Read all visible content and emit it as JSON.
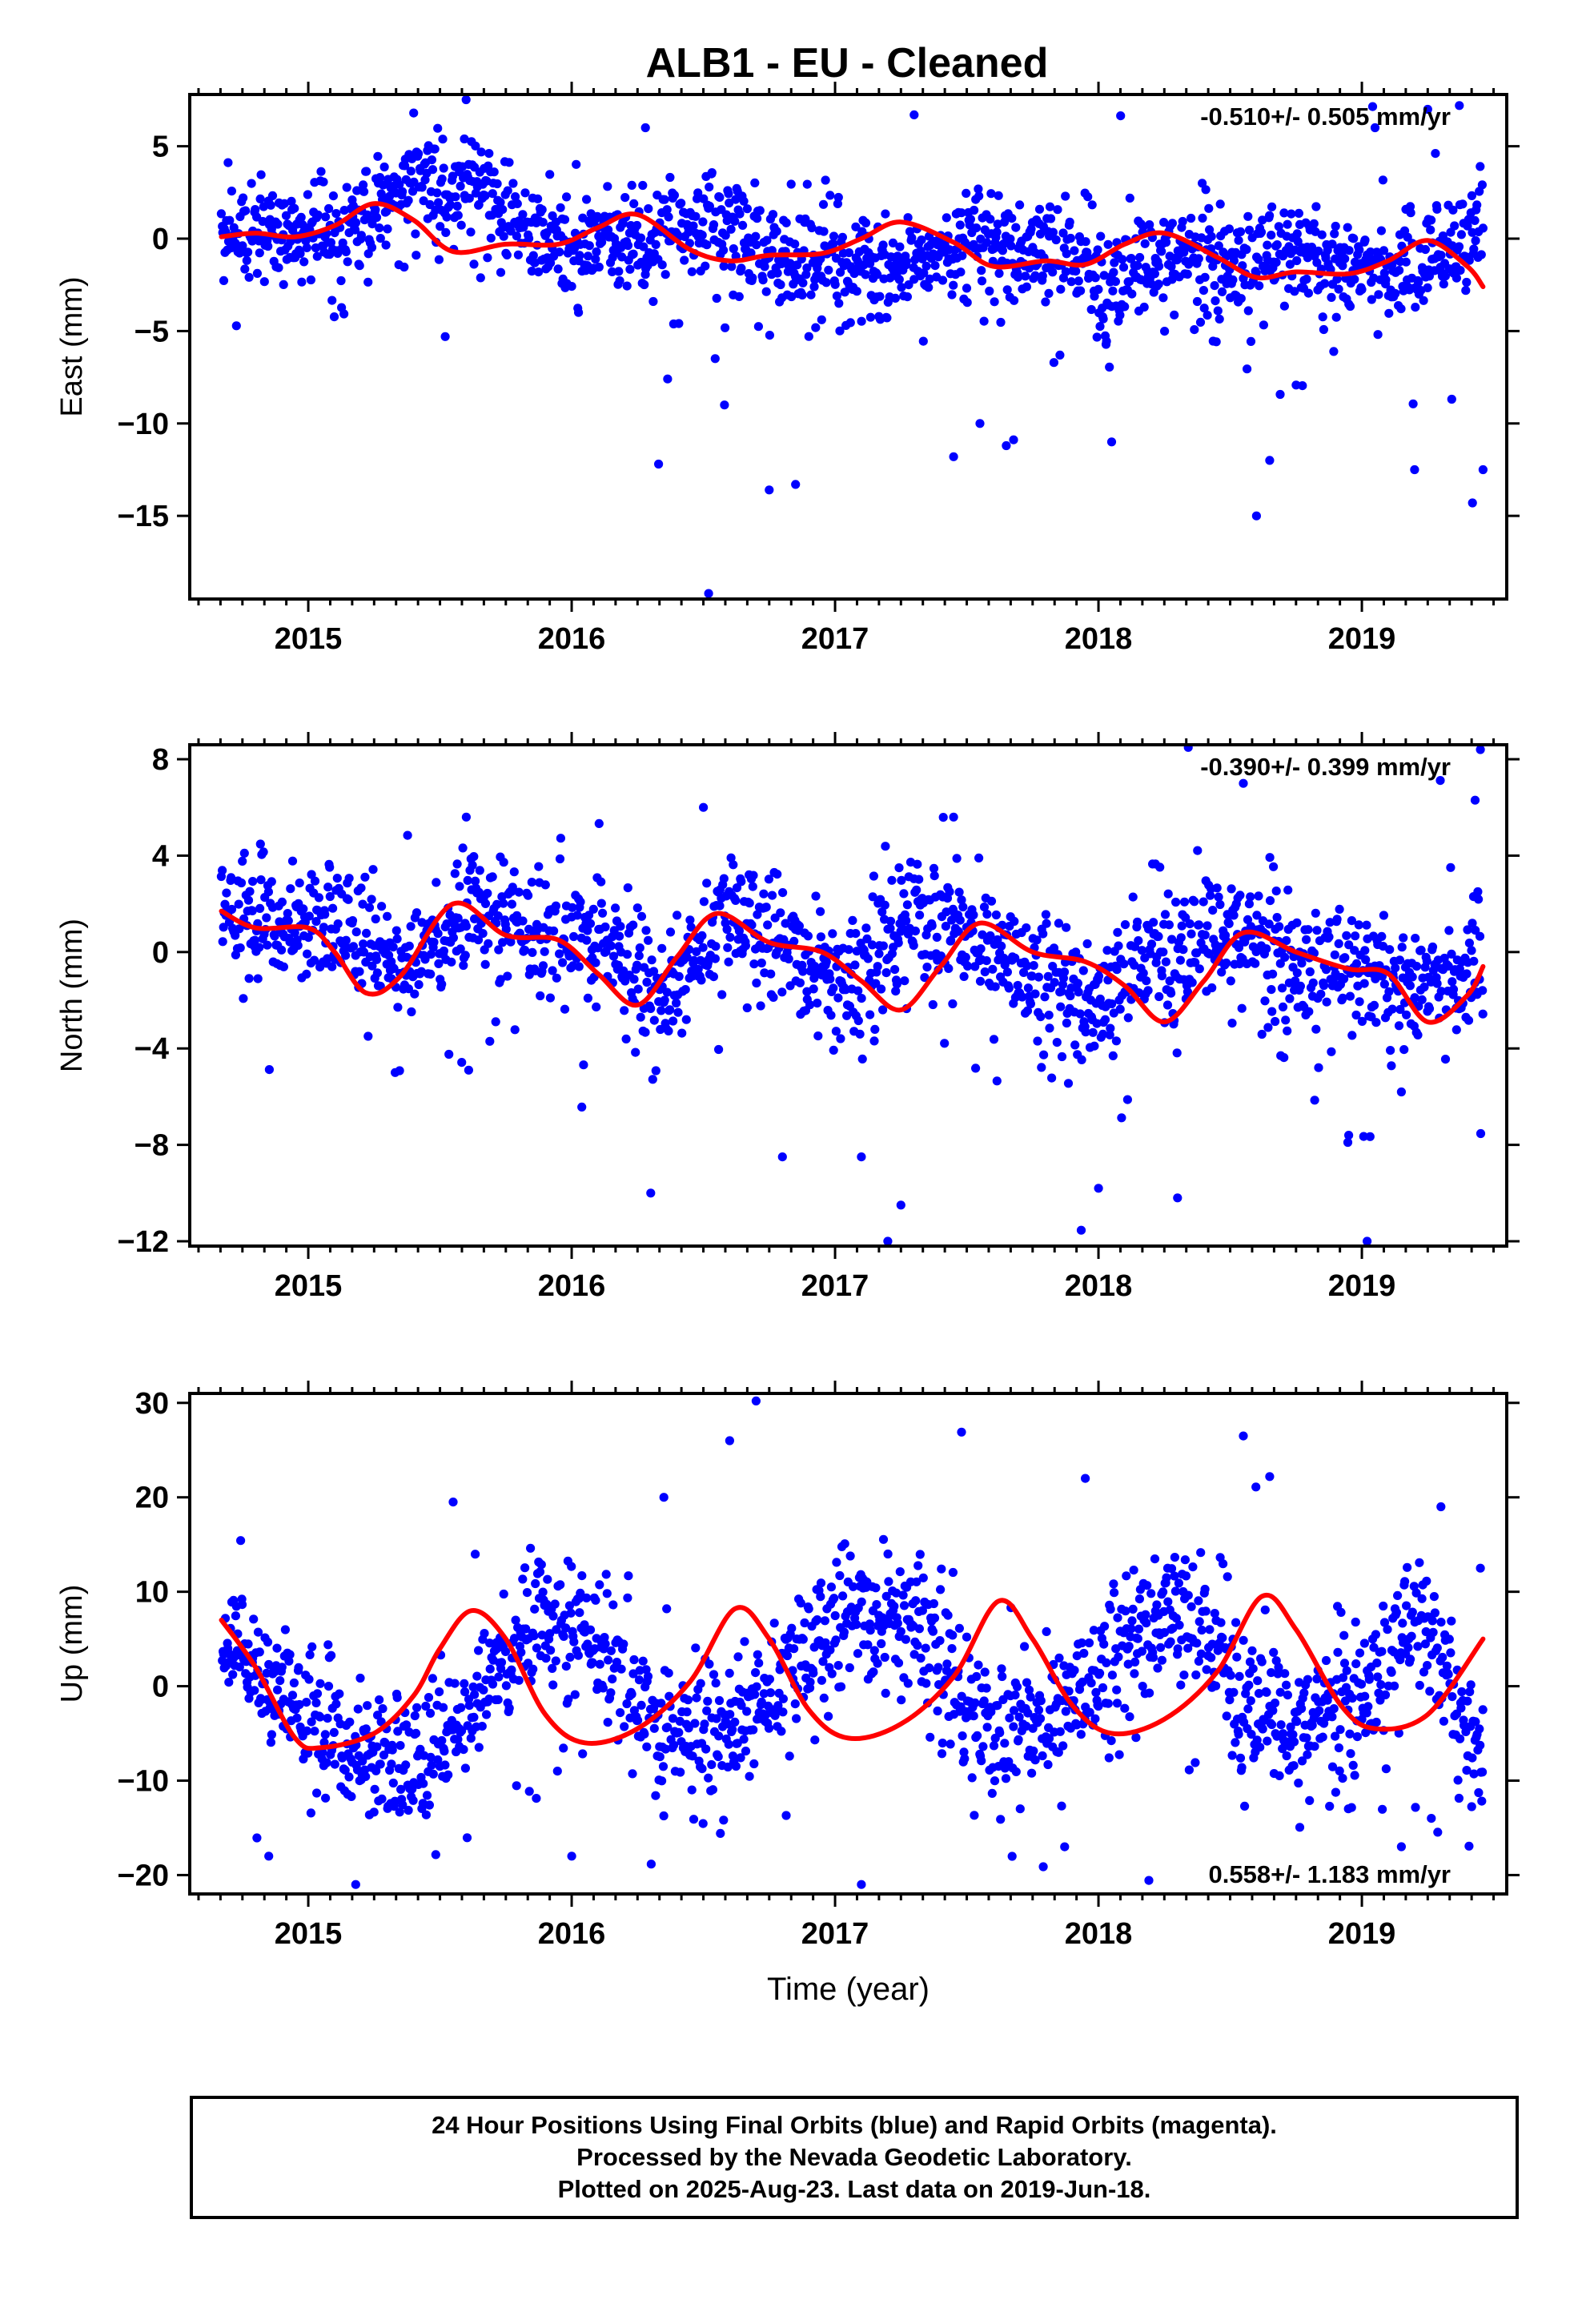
{
  "title": "ALB1  - EU - Cleaned",
  "colors": {
    "points": "#0000ff",
    "fit": "#ff0000",
    "frame": "#000000"
  },
  "chart_data": [
    {
      "type": "scatter",
      "id": "east",
      "ylabel": "East (mm)",
      "xlabel": "",
      "rate_text": "-0.510+/- 0.505 mm/yr",
      "rate_position": "top-right",
      "xlim": [
        2014.55,
        2019.55
      ],
      "ylim": [
        -19.5,
        7.8
      ],
      "yticks": [
        5,
        0,
        -5,
        -10,
        -15
      ],
      "xticks": [
        2015,
        2016,
        2017,
        2018,
        2019
      ],
      "grid": false,
      "series": [
        {
          "kind": "points",
          "x_range": [
            2014.67,
            2019.46
          ],
          "center": [
            0.2,
            0.3,
            0.3,
            3.0,
            3.0,
            0.0,
            -0.3,
            0.3,
            0.8,
            -1.5,
            -1.2,
            -1.5,
            -0.3,
            -0.5,
            -2.0,
            -1.0,
            -1.2,
            -0.5,
            -1.7,
            -1.5,
            0.5
          ],
          "spread": [
            1.2,
            1.5
          ],
          "outliers": [
            [
              2016.52,
              -19.2
            ],
            [
              2015.52,
              -5.3
            ],
            [
              2016.33,
              -12.2
            ],
            [
              2016.58,
              -9.0
            ],
            [
              2016.75,
              -13.6
            ],
            [
              2016.85,
              -13.3
            ],
            [
              2017.3,
              6.7
            ],
            [
              2017.45,
              -11.8
            ],
            [
              2017.55,
              -10.0
            ],
            [
              2017.65,
              -11.2
            ],
            [
              2018.05,
              -11.0
            ],
            [
              2018.6,
              -15.0
            ],
            [
              2018.65,
              -12.0
            ],
            [
              2019.05,
              6.0
            ],
            [
              2019.25,
              7.0
            ],
            [
              2019.37,
              7.2
            ],
            [
              2019.42,
              -14.3
            ],
            [
              2019.46,
              -12.5
            ],
            [
              2019.2,
              -12.5
            ],
            [
              2015.4,
              6.8
            ],
            [
              2016.28,
              6.0
            ]
          ]
        },
        {
          "kind": "fit-line",
          "x": [
            2014.67,
            2014.8,
            2014.95,
            2015.1,
            2015.25,
            2015.4,
            2015.55,
            2015.75,
            2015.95,
            2016.1,
            2016.25,
            2016.45,
            2016.6,
            2016.75,
            2016.95,
            2017.1,
            2017.25,
            2017.45,
            2017.6,
            2017.8,
            2017.95,
            2018.1,
            2018.25,
            2018.45,
            2018.6,
            2018.75,
            2018.95,
            2019.1,
            2019.25,
            2019.4,
            2019.46
          ],
          "y": [
            0.1,
            0.3,
            0.1,
            0.7,
            1.9,
            1.0,
            -0.7,
            -0.3,
            -0.3,
            0.6,
            1.3,
            -0.6,
            -1.2,
            -0.9,
            -0.8,
            0.0,
            0.9,
            -0.2,
            -1.5,
            -1.2,
            -1.4,
            -0.3,
            0.3,
            -1.0,
            -2.1,
            -1.8,
            -1.9,
            -1.2,
            -0.1,
            -1.5,
            -2.6
          ]
        }
      ]
    },
    {
      "type": "scatter",
      "id": "north",
      "ylabel": "North (mm)",
      "xlabel": "",
      "rate_text": "-0.390+/- 0.399 mm/yr",
      "rate_position": "top-right",
      "xlim": [
        2014.55,
        2019.55
      ],
      "ylim": [
        -12.2,
        8.6
      ],
      "yticks": [
        8,
        4,
        0,
        -4,
        -8,
        -12
      ],
      "xticks": [
        2015,
        2016,
        2017,
        2018,
        2019
      ],
      "grid": false,
      "series": [
        {
          "kind": "points",
          "x_range": [
            2014.67,
            2019.46
          ],
          "center": [
            1.6,
            1.1,
            1.0,
            -1.0,
            2.2,
            0.8,
            0.4,
            -2.0,
            1.8,
            0.2,
            -1.5,
            1.4,
            0.6,
            -1.2,
            -2.0,
            0.5,
            0.8,
            -0.4,
            -0.6,
            -1.5,
            -0.5
          ],
          "spread": [
            1.1,
            1.4
          ],
          "outliers": [
            [
              2017.2,
              -12.0
            ],
            [
              2017.25,
              -10.5
            ],
            [
              2016.3,
              -10.0
            ],
            [
              2016.5,
              6.0
            ],
            [
              2017.45,
              5.6
            ],
            [
              2018.3,
              -10.2
            ],
            [
              2018.55,
              7.0
            ],
            [
              2018.95,
              -7.6
            ],
            [
              2019.02,
              -12.0
            ],
            [
              2019.45,
              8.4
            ],
            [
              2019.43,
              6.3
            ],
            [
              2015.33,
              -5.0
            ],
            [
              2017.1,
              -8.5
            ],
            [
              2018.0,
              -9.8
            ],
            [
              2016.8,
              -8.5
            ],
            [
              2015.6,
              5.6
            ]
          ]
        },
        {
          "kind": "fit-line",
          "x": [
            2014.67,
            2014.8,
            2015.0,
            2015.1,
            2015.22,
            2015.35,
            2015.55,
            2015.75,
            2015.95,
            2016.1,
            2016.25,
            2016.4,
            2016.55,
            2016.75,
            2016.95,
            2017.1,
            2017.25,
            2017.4,
            2017.55,
            2017.75,
            2017.95,
            2018.1,
            2018.25,
            2018.4,
            2018.55,
            2018.75,
            2018.95,
            2019.1,
            2019.25,
            2019.4,
            2019.46
          ],
          "y": [
            1.7,
            1.0,
            1.0,
            0.0,
            -1.7,
            -1.0,
            2.0,
            0.7,
            0.5,
            -0.9,
            -2.2,
            -0.2,
            1.6,
            0.4,
            0.0,
            -1.2,
            -2.4,
            -0.6,
            1.2,
            0.0,
            -0.4,
            -1.4,
            -2.9,
            -1.2,
            0.8,
            0.0,
            -0.7,
            -0.9,
            -2.9,
            -1.8,
            -0.6
          ]
        }
      ]
    },
    {
      "type": "scatter",
      "id": "up",
      "ylabel": "Up (mm)",
      "xlabel": "Time (year)",
      "rate_text": "0.558+/- 1.183 mm/yr",
      "rate_position": "bottom-right",
      "xlim": [
        2014.55,
        2019.55
      ],
      "ylim": [
        -22.0,
        31.0
      ],
      "yticks": [
        30,
        20,
        10,
        0,
        -10,
        -20
      ],
      "xticks": [
        2015,
        2016,
        2017,
        2018,
        2019
      ],
      "grid": false,
      "series": [
        {
          "kind": "points",
          "x_range": [
            2014.67,
            2019.46
          ],
          "center": [
            5.5,
            -1.5,
            -6.5,
            -9.0,
            -3.0,
            8.0,
            5.0,
            -6.0,
            -5.0,
            2.0,
            8.0,
            7.0,
            -5.0,
            -4.0,
            2.0,
            9.0,
            2.0,
            -5.0,
            -1.0,
            8.0,
            -8.0
          ],
          "spread": [
            3.2,
            3.8
          ],
          "outliers": [
            [
              2016.7,
              30.2
            ],
            [
              2016.6,
              26.0
            ],
            [
              2017.48,
              26.9
            ],
            [
              2018.55,
              26.5
            ],
            [
              2015.55,
              19.5
            ],
            [
              2016.35,
              20.0
            ],
            [
              2017.1,
              -21.0
            ],
            [
              2015.18,
              -21.0
            ],
            [
              2017.95,
              22.0
            ],
            [
              2018.65,
              22.2
            ],
            [
              2019.3,
              19.0
            ],
            [
              2019.45,
              12.5
            ],
            [
              2014.85,
              -18.0
            ],
            [
              2016.0,
              -18.0
            ],
            [
              2019.15,
              -17.0
            ]
          ]
        },
        {
          "kind": "fit-line",
          "x": [
            2014.67,
            2014.8,
            2014.95,
            2015.05,
            2015.25,
            2015.4,
            2015.5,
            2015.62,
            2015.75,
            2015.9,
            2016.05,
            2016.25,
            2016.45,
            2016.62,
            2016.75,
            2016.9,
            2017.05,
            2017.25,
            2017.45,
            2017.62,
            2017.75,
            2017.9,
            2018.05,
            2018.25,
            2018.45,
            2018.62,
            2018.75,
            2018.92,
            2019.05,
            2019.25,
            2019.46
          ],
          "y": [
            7.0,
            2.0,
            -5.5,
            -6.5,
            -5.0,
            -1.0,
            4.0,
            8.0,
            5.0,
            -3.0,
            -6.0,
            -4.5,
            0.5,
            8.2,
            5.0,
            -2.5,
            -5.5,
            -4.0,
            1.0,
            9.0,
            5.0,
            -2.0,
            -5.0,
            -3.5,
            1.5,
            9.5,
            6.0,
            -2.0,
            -4.5,
            -3.0,
            5.0
          ]
        }
      ]
    }
  ],
  "footer": {
    "line1": "24 Hour Positions Using Final Orbits (blue) and Rapid Orbits (magenta).",
    "line2": "Processed by the Nevada Geodetic Laboratory.",
    "line3": "Plotted on 2025-Aug-23. Last data on 2019-Jun-18."
  }
}
